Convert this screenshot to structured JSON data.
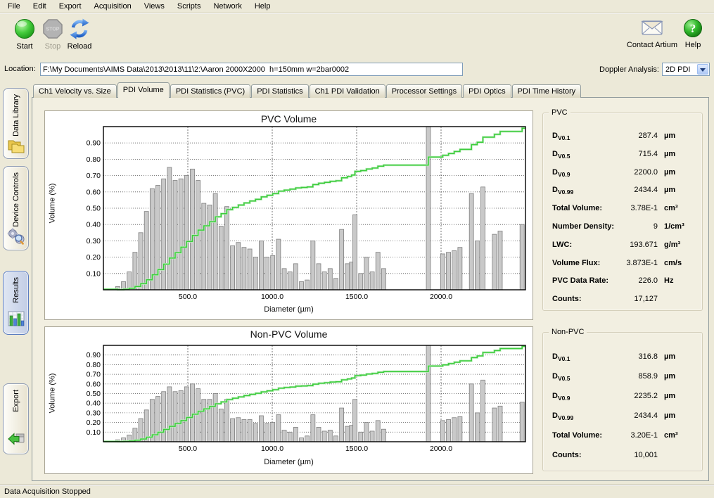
{
  "menu": {
    "items": [
      "File",
      "Edit",
      "Export",
      "Acquisition",
      "Views",
      "Scripts",
      "Network",
      "Help"
    ]
  },
  "toolbar": {
    "start_label": "Start",
    "stop_label": "Stop",
    "stop_badge": "STOP",
    "reload_label": "Reload",
    "contact_label": "Contact Artium",
    "help_label": "Help"
  },
  "location": {
    "label": "Location:",
    "value": "F:\\My Documents\\AIMS Data\\2013\\2013\\11\\2:\\Aaron 2000X2000  h=150mm w=2bar0002"
  },
  "doppler": {
    "label": "Doppler Analysis:",
    "value": "2D PDI"
  },
  "tabs": {
    "active_index": 1,
    "items": [
      "Ch1 Velocity vs. Size",
      "PDI Volume",
      "PDI Statistics (PVC)",
      "PDI Statistics",
      "Ch1 PDI Validation",
      "Processor Settings",
      "PDI Optics",
      "PDI Time History"
    ]
  },
  "sidebar": {
    "items": [
      {
        "label": "Data Library",
        "icon": "folders-icon",
        "selected": false
      },
      {
        "label": "Device Controls",
        "icon": "gears-icon",
        "selected": false
      },
      {
        "label": "Results",
        "icon": "results-chart-icon",
        "selected": true
      },
      {
        "label": "Export",
        "icon": "export-icon",
        "selected": false
      }
    ]
  },
  "stats": {
    "pvc": {
      "title": "PVC",
      "rows": [
        {
          "base": "D",
          "sub": "V0.1",
          "value": "287.4",
          "unit": "µm"
        },
        {
          "base": "D",
          "sub": "V0.5",
          "value": "715.4",
          "unit": "µm"
        },
        {
          "base": "D",
          "sub": "V0.9",
          "value": "2200.0",
          "unit": "µm"
        },
        {
          "base": "D",
          "sub": "V0.99",
          "value": "2434.4",
          "unit": "µm"
        },
        {
          "label": "Total Volume:",
          "value": "3.78E-1",
          "unit": "cm³"
        },
        {
          "label": "Number Density:",
          "value": "9",
          "unit": "1/cm³"
        },
        {
          "label": "LWC:",
          "value": "193.671",
          "unit": "g/m³"
        },
        {
          "label": "Volume Flux:",
          "value": "3.873E-1",
          "unit": "cm/s"
        },
        {
          "label": "PVC Data Rate:",
          "value": "226.0",
          "unit": "Hz"
        },
        {
          "label": "Counts:",
          "value": "17,127",
          "unit": ""
        }
      ]
    },
    "nonpvc": {
      "title": "Non-PVC",
      "rows": [
        {
          "base": "D",
          "sub": "V0.1",
          "value": "316.8",
          "unit": "µm"
        },
        {
          "base": "D",
          "sub": "V0.5",
          "value": "858.9",
          "unit": "µm"
        },
        {
          "base": "D",
          "sub": "V0.9",
          "value": "2235.2",
          "unit": "µm"
        },
        {
          "base": "D",
          "sub": "V0.99",
          "value": "2434.4",
          "unit": "µm"
        },
        {
          "label": "Total Volume:",
          "value": "3.20E-1",
          "unit": "cm³"
        },
        {
          "label": "Counts:",
          "value": "10,001",
          "unit": ""
        }
      ]
    }
  },
  "status_bar": {
    "text": "Data Acquisition Stopped"
  },
  "colors": {
    "window_bg": "#ece9d8",
    "bar_fill": "#c9c9c9",
    "bar_stroke": "#7f7f7f",
    "cumulative_line": "#3ccc3c",
    "grid": "#555555"
  },
  "chart_data": [
    {
      "type": "bar",
      "title": "PVC Volume",
      "xlabel": "Diameter (µm)",
      "ylabel": "Volume (%)",
      "xlim": [
        0,
        2500
      ],
      "ylim": [
        0,
        1.0
      ],
      "x_ticks": [
        500,
        1000,
        1500,
        2000
      ],
      "y_ticks": [
        0.1,
        0.2,
        0.3,
        0.4,
        0.5,
        0.6,
        0.7,
        0.8,
        0.9
      ],
      "grid": true,
      "line_series": "cumulative volume fraction (normalized running sum of bars)",
      "bars": [
        [
          85,
          0.02
        ],
        [
          119,
          0.05
        ],
        [
          153,
          0.11
        ],
        [
          187,
          0.23
        ],
        [
          221,
          0.35
        ],
        [
          255,
          0.48
        ],
        [
          289,
          0.62
        ],
        [
          323,
          0.64
        ],
        [
          357,
          0.68
        ],
        [
          391,
          0.75
        ],
        [
          425,
          0.67
        ],
        [
          459,
          0.68
        ],
        [
          493,
          0.7
        ],
        [
          527,
          0.74
        ],
        [
          561,
          0.67
        ],
        [
          595,
          0.53
        ],
        [
          629,
          0.52
        ],
        [
          663,
          0.59
        ],
        [
          697,
          0.39
        ],
        [
          731,
          0.51
        ],
        [
          765,
          0.27
        ],
        [
          799,
          0.29
        ],
        [
          833,
          0.26
        ],
        [
          867,
          0.25
        ],
        [
          901,
          0.2
        ],
        [
          935,
          0.3
        ],
        [
          969,
          0.2
        ],
        [
          1003,
          0.21
        ],
        [
          1037,
          0.31
        ],
        [
          1071,
          0.13
        ],
        [
          1105,
          0.11
        ],
        [
          1139,
          0.16
        ],
        [
          1173,
          0.05
        ],
        [
          1207,
          0.06
        ],
        [
          1241,
          0.3
        ],
        [
          1275,
          0.16
        ],
        [
          1309,
          0.11
        ],
        [
          1343,
          0.13
        ],
        [
          1377,
          0.07
        ],
        [
          1411,
          0.37
        ],
        [
          1445,
          0.16
        ],
        [
          1470,
          0.17
        ],
        [
          1490,
          0.46
        ],
        [
          1524,
          0.1
        ],
        [
          1558,
          0.2
        ],
        [
          1592,
          0.11
        ],
        [
          1626,
          0.23
        ],
        [
          1660,
          0.13
        ],
        [
          1925,
          1.0
        ],
        [
          2010,
          0.22
        ],
        [
          2044,
          0.23
        ],
        [
          2078,
          0.24
        ],
        [
          2112,
          0.26
        ],
        [
          2180,
          0.59
        ],
        [
          2214,
          0.3
        ],
        [
          2248,
          0.63
        ],
        [
          2316,
          0.34
        ],
        [
          2350,
          0.36
        ],
        [
          2480,
          0.4
        ]
      ]
    },
    {
      "type": "bar",
      "title": "Non-PVC Volume",
      "xlabel": "Diameter (µm)",
      "ylabel": "Volume (%)",
      "xlim": [
        0,
        2500
      ],
      "ylim": [
        0,
        1.0
      ],
      "x_ticks": [
        500,
        1000,
        1500,
        2000
      ],
      "y_ticks": [
        0.1,
        0.2,
        0.3,
        0.4,
        0.5,
        0.6,
        0.7,
        0.8,
        0.9
      ],
      "grid": true,
      "line_series": "cumulative volume fraction (normalized running sum of bars)",
      "bars": [
        [
          85,
          0.02
        ],
        [
          119,
          0.04
        ],
        [
          153,
          0.07
        ],
        [
          187,
          0.14
        ],
        [
          221,
          0.24
        ],
        [
          255,
          0.33
        ],
        [
          289,
          0.44
        ],
        [
          323,
          0.47
        ],
        [
          357,
          0.52
        ],
        [
          391,
          0.57
        ],
        [
          425,
          0.52
        ],
        [
          459,
          0.53
        ],
        [
          493,
          0.57
        ],
        [
          527,
          0.6
        ],
        [
          561,
          0.55
        ],
        [
          595,
          0.44
        ],
        [
          629,
          0.44
        ],
        [
          663,
          0.5
        ],
        [
          697,
          0.34
        ],
        [
          731,
          0.44
        ],
        [
          765,
          0.24
        ],
        [
          799,
          0.25
        ],
        [
          833,
          0.23
        ],
        [
          867,
          0.23
        ],
        [
          901,
          0.19
        ],
        [
          935,
          0.27
        ],
        [
          969,
          0.19
        ],
        [
          1003,
          0.2
        ],
        [
          1037,
          0.28
        ],
        [
          1071,
          0.12
        ],
        [
          1105,
          0.1
        ],
        [
          1139,
          0.15
        ],
        [
          1173,
          0.04
        ],
        [
          1207,
          0.06
        ],
        [
          1241,
          0.28
        ],
        [
          1275,
          0.15
        ],
        [
          1309,
          0.11
        ],
        [
          1343,
          0.12
        ],
        [
          1377,
          0.06
        ],
        [
          1411,
          0.35
        ],
        [
          1445,
          0.16
        ],
        [
          1470,
          0.17
        ],
        [
          1490,
          0.44
        ],
        [
          1524,
          0.1
        ],
        [
          1558,
          0.2
        ],
        [
          1592,
          0.11
        ],
        [
          1626,
          0.22
        ],
        [
          1660,
          0.13
        ],
        [
          1925,
          1.0
        ],
        [
          2010,
          0.22
        ],
        [
          2044,
          0.23
        ],
        [
          2078,
          0.25
        ],
        [
          2112,
          0.26
        ],
        [
          2180,
          0.6
        ],
        [
          2214,
          0.3
        ],
        [
          2248,
          0.64
        ],
        [
          2316,
          0.35
        ],
        [
          2350,
          0.37
        ],
        [
          2480,
          0.41
        ]
      ]
    }
  ]
}
